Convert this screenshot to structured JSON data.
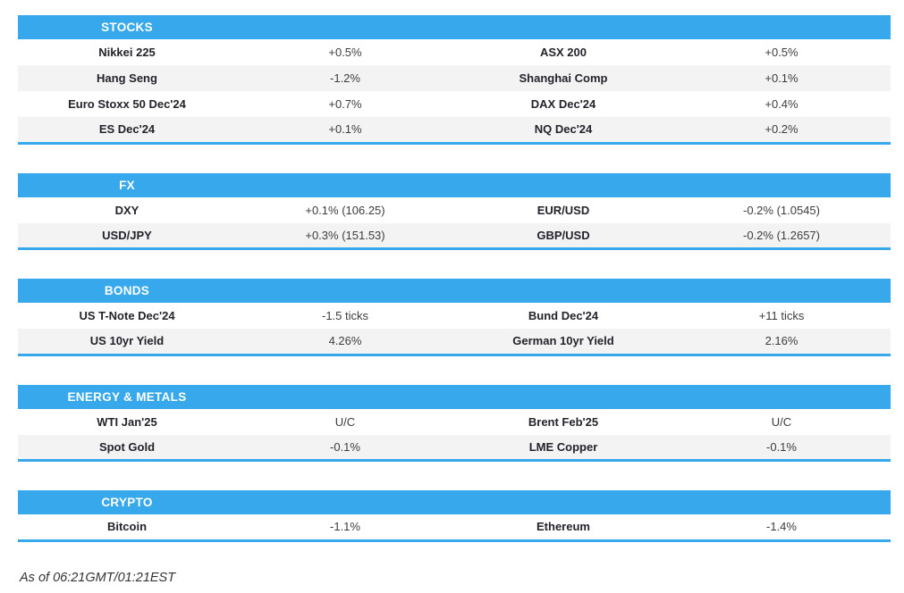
{
  "theme": {
    "accent": "#37a8eb",
    "alt_row": "#f3f3f3",
    "name_color": "#23232b",
    "value_color": "#3d3d3d"
  },
  "sections": [
    {
      "title": "STOCKS",
      "rows": [
        [
          "Nikkei 225",
          "+0.5%",
          "ASX 200",
          "+0.5%"
        ],
        [
          "Hang Seng",
          "-1.2%",
          "Shanghai Comp",
          "+0.1%"
        ],
        [
          "Euro Stoxx 50 Dec'24",
          "+0.7%",
          "DAX Dec'24",
          "+0.4%"
        ],
        [
          "ES Dec'24",
          "+0.1%",
          "NQ Dec'24",
          "+0.2%"
        ]
      ]
    },
    {
      "title": "FX",
      "rows": [
        [
          "DXY",
          "+0.1% (106.25)",
          "EUR/USD",
          "-0.2% (1.0545)"
        ],
        [
          "USD/JPY",
          "+0.3% (151.53)",
          "GBP/USD",
          "-0.2% (1.2657)"
        ]
      ]
    },
    {
      "title": "BONDS",
      "rows": [
        [
          "US T-Note Dec'24",
          "-1.5 ticks",
          "Bund Dec'24",
          "+11 ticks"
        ],
        [
          "US 10yr Yield",
          "4.26%",
          "German 10yr Yield",
          "2.16%"
        ]
      ]
    },
    {
      "title": "ENERGY & METALS",
      "rows": [
        [
          "WTI Jan'25",
          "U/C",
          "Brent Feb'25",
          "U/C"
        ],
        [
          "Spot Gold",
          "-0.1%",
          "LME Copper",
          "-0.1%"
        ]
      ]
    },
    {
      "title": "CRYPTO",
      "rows": [
        [
          "Bitcoin",
          "-1.1%",
          "Ethereum",
          "-1.4%"
        ]
      ]
    }
  ],
  "footer": {
    "as_of": "As of 06:21GMT/01:21EST"
  }
}
